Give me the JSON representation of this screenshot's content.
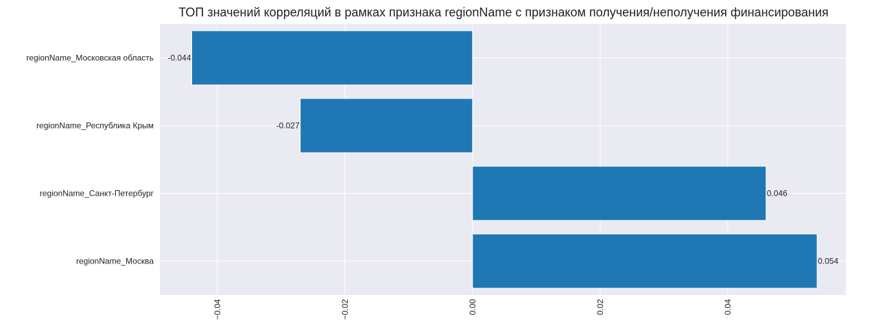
{
  "chart_data": {
    "type": "bar",
    "orientation": "horizontal",
    "title": "ТОП значений корреляций в рамках признака regionName с признаком получения/неполучения финансирования",
    "xlabel": "",
    "ylabel": "",
    "categories": [
      "regionName_Московская область",
      "regionName_Республика Крым",
      "regionName_Санкт-Петербург",
      "regionName_Москва"
    ],
    "values": [
      -0.044,
      -0.027,
      0.046,
      0.054
    ],
    "data_labels": [
      "-0.044",
      "-0.027",
      "0.046",
      "0.054"
    ],
    "xlim": [
      -0.049,
      0.0585
    ],
    "xticks": [
      -0.04,
      -0.02,
      0.0,
      0.02,
      0.04
    ],
    "xtick_labels": [
      "−0.04",
      "−0.02",
      "0.00",
      "0.02",
      "0.04"
    ],
    "xtick_rotation": "vertical",
    "grid": true,
    "colors": {
      "bar": "#1f77b4",
      "plot_background": "#eaeaf2",
      "grid": "#ffffff",
      "text": "#222222"
    }
  }
}
